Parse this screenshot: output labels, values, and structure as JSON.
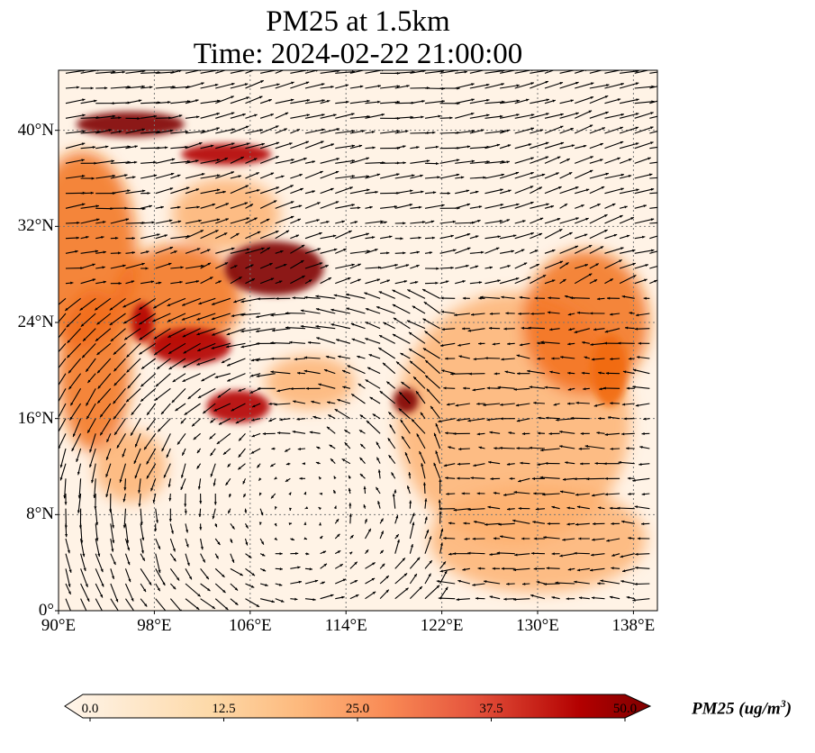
{
  "title_line1": "PM25 at 1.5km",
  "title_line2": "Time: 2024-02-22 21:00:00",
  "chart_data": {
    "type": "heatmap",
    "title": "PM25 at 1.5km / Time: 2024-02-22 21:00:00",
    "lon_range": [
      90,
      140
    ],
    "lat_range": [
      0,
      45
    ],
    "x_ticks": [
      "90°E",
      "98°E",
      "106°E",
      "114°E",
      "122°E",
      "130°E",
      "138°E"
    ],
    "x_tick_values": [
      90,
      98,
      106,
      114,
      122,
      130,
      138
    ],
    "y_ticks": [
      "0°",
      "8°N",
      "16°N",
      "24°N",
      "32°N",
      "40°N"
    ],
    "y_tick_values": [
      0,
      8,
      16,
      24,
      32,
      40
    ],
    "grid": true,
    "colorbar": {
      "label_main": "PM25 (ug/m",
      "label_sup": "3",
      "label_end": ")",
      "range": [
        0,
        50
      ],
      "ticks": [
        "0.0",
        "12.5",
        "25.0",
        "37.5",
        "50.0"
      ],
      "colors": [
        "#fff5eb",
        "#fdd9a8",
        "#fdae6b",
        "#f16913",
        "#e5533c",
        "#b30000",
        "#7f0000"
      ]
    },
    "hotspots": [
      {
        "lon": 96,
        "lat": 40.5,
        "value": 50
      },
      {
        "lon": 104,
        "lat": 38,
        "value": 45
      },
      {
        "lon": 108,
        "lat": 28.5,
        "value": 48
      },
      {
        "lon": 101,
        "lat": 22,
        "value": 45
      },
      {
        "lon": 105,
        "lat": 17,
        "value": 40
      },
      {
        "lon": 119,
        "lat": 17.5,
        "value": 50
      },
      {
        "lon": 97,
        "lat": 24,
        "value": 40
      },
      {
        "lon": 136,
        "lat": 20,
        "value": 28
      }
    ],
    "vectors": "wind at 1.5km: westerlies north of ~25°N, easterlies over western Pacific, cyclonic turn over South China Sea"
  }
}
